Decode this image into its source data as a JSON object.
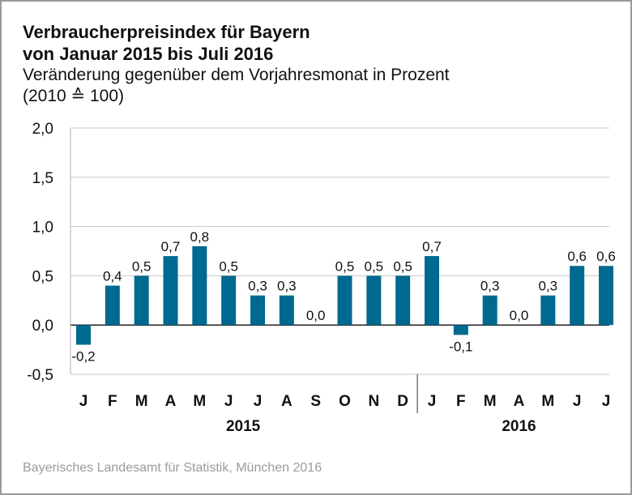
{
  "chart_data": {
    "type": "bar",
    "title": "Verbraucherpreisindex für Bayern",
    "title_line2": "von Januar 2015 bis Juli 2016",
    "subtitle": "Veränderung gegenüber dem Vorjahresmonat in Prozent",
    "subtitle_line2": "(2010 ≙ 100)",
    "categories": [
      "J",
      "F",
      "M",
      "A",
      "M",
      "J",
      "J",
      "A",
      "S",
      "O",
      "N",
      "D",
      "J",
      "F",
      "M",
      "A",
      "M",
      "J",
      "J"
    ],
    "values": [
      -0.2,
      0.4,
      0.5,
      0.7,
      0.8,
      0.5,
      0.3,
      0.3,
      0.0,
      0.5,
      0.5,
      0.5,
      0.7,
      -0.1,
      0.3,
      0.0,
      0.3,
      0.6,
      0.6
    ],
    "value_labels": [
      "-0,2",
      "0,4",
      "0,5",
      "0,7",
      "0,8",
      "0,5",
      "0,3",
      "0,3",
      "0,0",
      "0,5",
      "0,5",
      "0,5",
      "0,7",
      "-0,1",
      "0,3",
      "0,0",
      "0,3",
      "0,6",
      "0,6"
    ],
    "groups": [
      {
        "label": "2015",
        "count": 12
      },
      {
        "label": "2016",
        "count": 7
      }
    ],
    "yticks": [
      2.0,
      1.5,
      1.0,
      0.5,
      0.0,
      -0.5
    ],
    "ytick_labels": [
      "2,0",
      "1,5",
      "1,0",
      "0,5",
      "0,0",
      "-0,5"
    ],
    "ylim": [
      -0.5,
      2.0
    ],
    "xlabel": "",
    "ylabel": "",
    "grid": true,
    "bar_color": "#00698f",
    "source": "Bayerisches Landesamt für Statistik, München 2016"
  }
}
